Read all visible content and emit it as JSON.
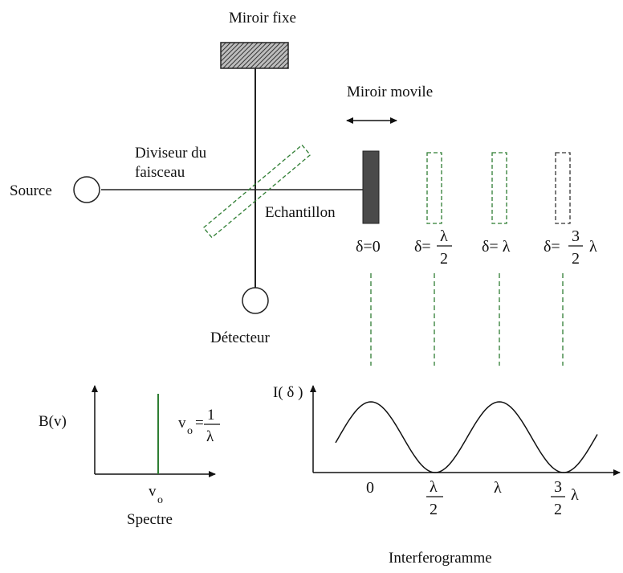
{
  "interferometer": {
    "fixed_mirror_label": "Miroir fixe",
    "moving_mirror_label": "Miroir movile",
    "beam_splitter_label_line1": "Diviseur du",
    "beam_splitter_label_line2": "faisceau",
    "source_label": "Source",
    "sample_label": "Echantillon",
    "detector_label": "Détecteur"
  },
  "mirror_positions": {
    "pos0": "δ=0",
    "pos1_prefix": "δ=",
    "pos1_num": "λ",
    "pos1_den": "2",
    "pos2": "δ= λ",
    "pos3_prefix": "δ=",
    "pos3_num": "3",
    "pos3_den": "2",
    "pos3_suffix": "λ"
  },
  "spectrum": {
    "y_label": "B(v)",
    "nu_label": "v",
    "nu_sub": "o",
    "formula_num": "1",
    "formula_den": "λ",
    "formula_eq": "=",
    "x_tick": "v",
    "x_tick_sub": "o",
    "caption": "Spectre"
  },
  "interferogram": {
    "y_label": "I( δ )",
    "tick0": "0",
    "tick1_num": "λ",
    "tick1_den": "2",
    "tick2": "λ",
    "tick3_num": "3",
    "tick3_den": "2",
    "tick3_suffix": "λ",
    "caption": "Interferogramme"
  }
}
